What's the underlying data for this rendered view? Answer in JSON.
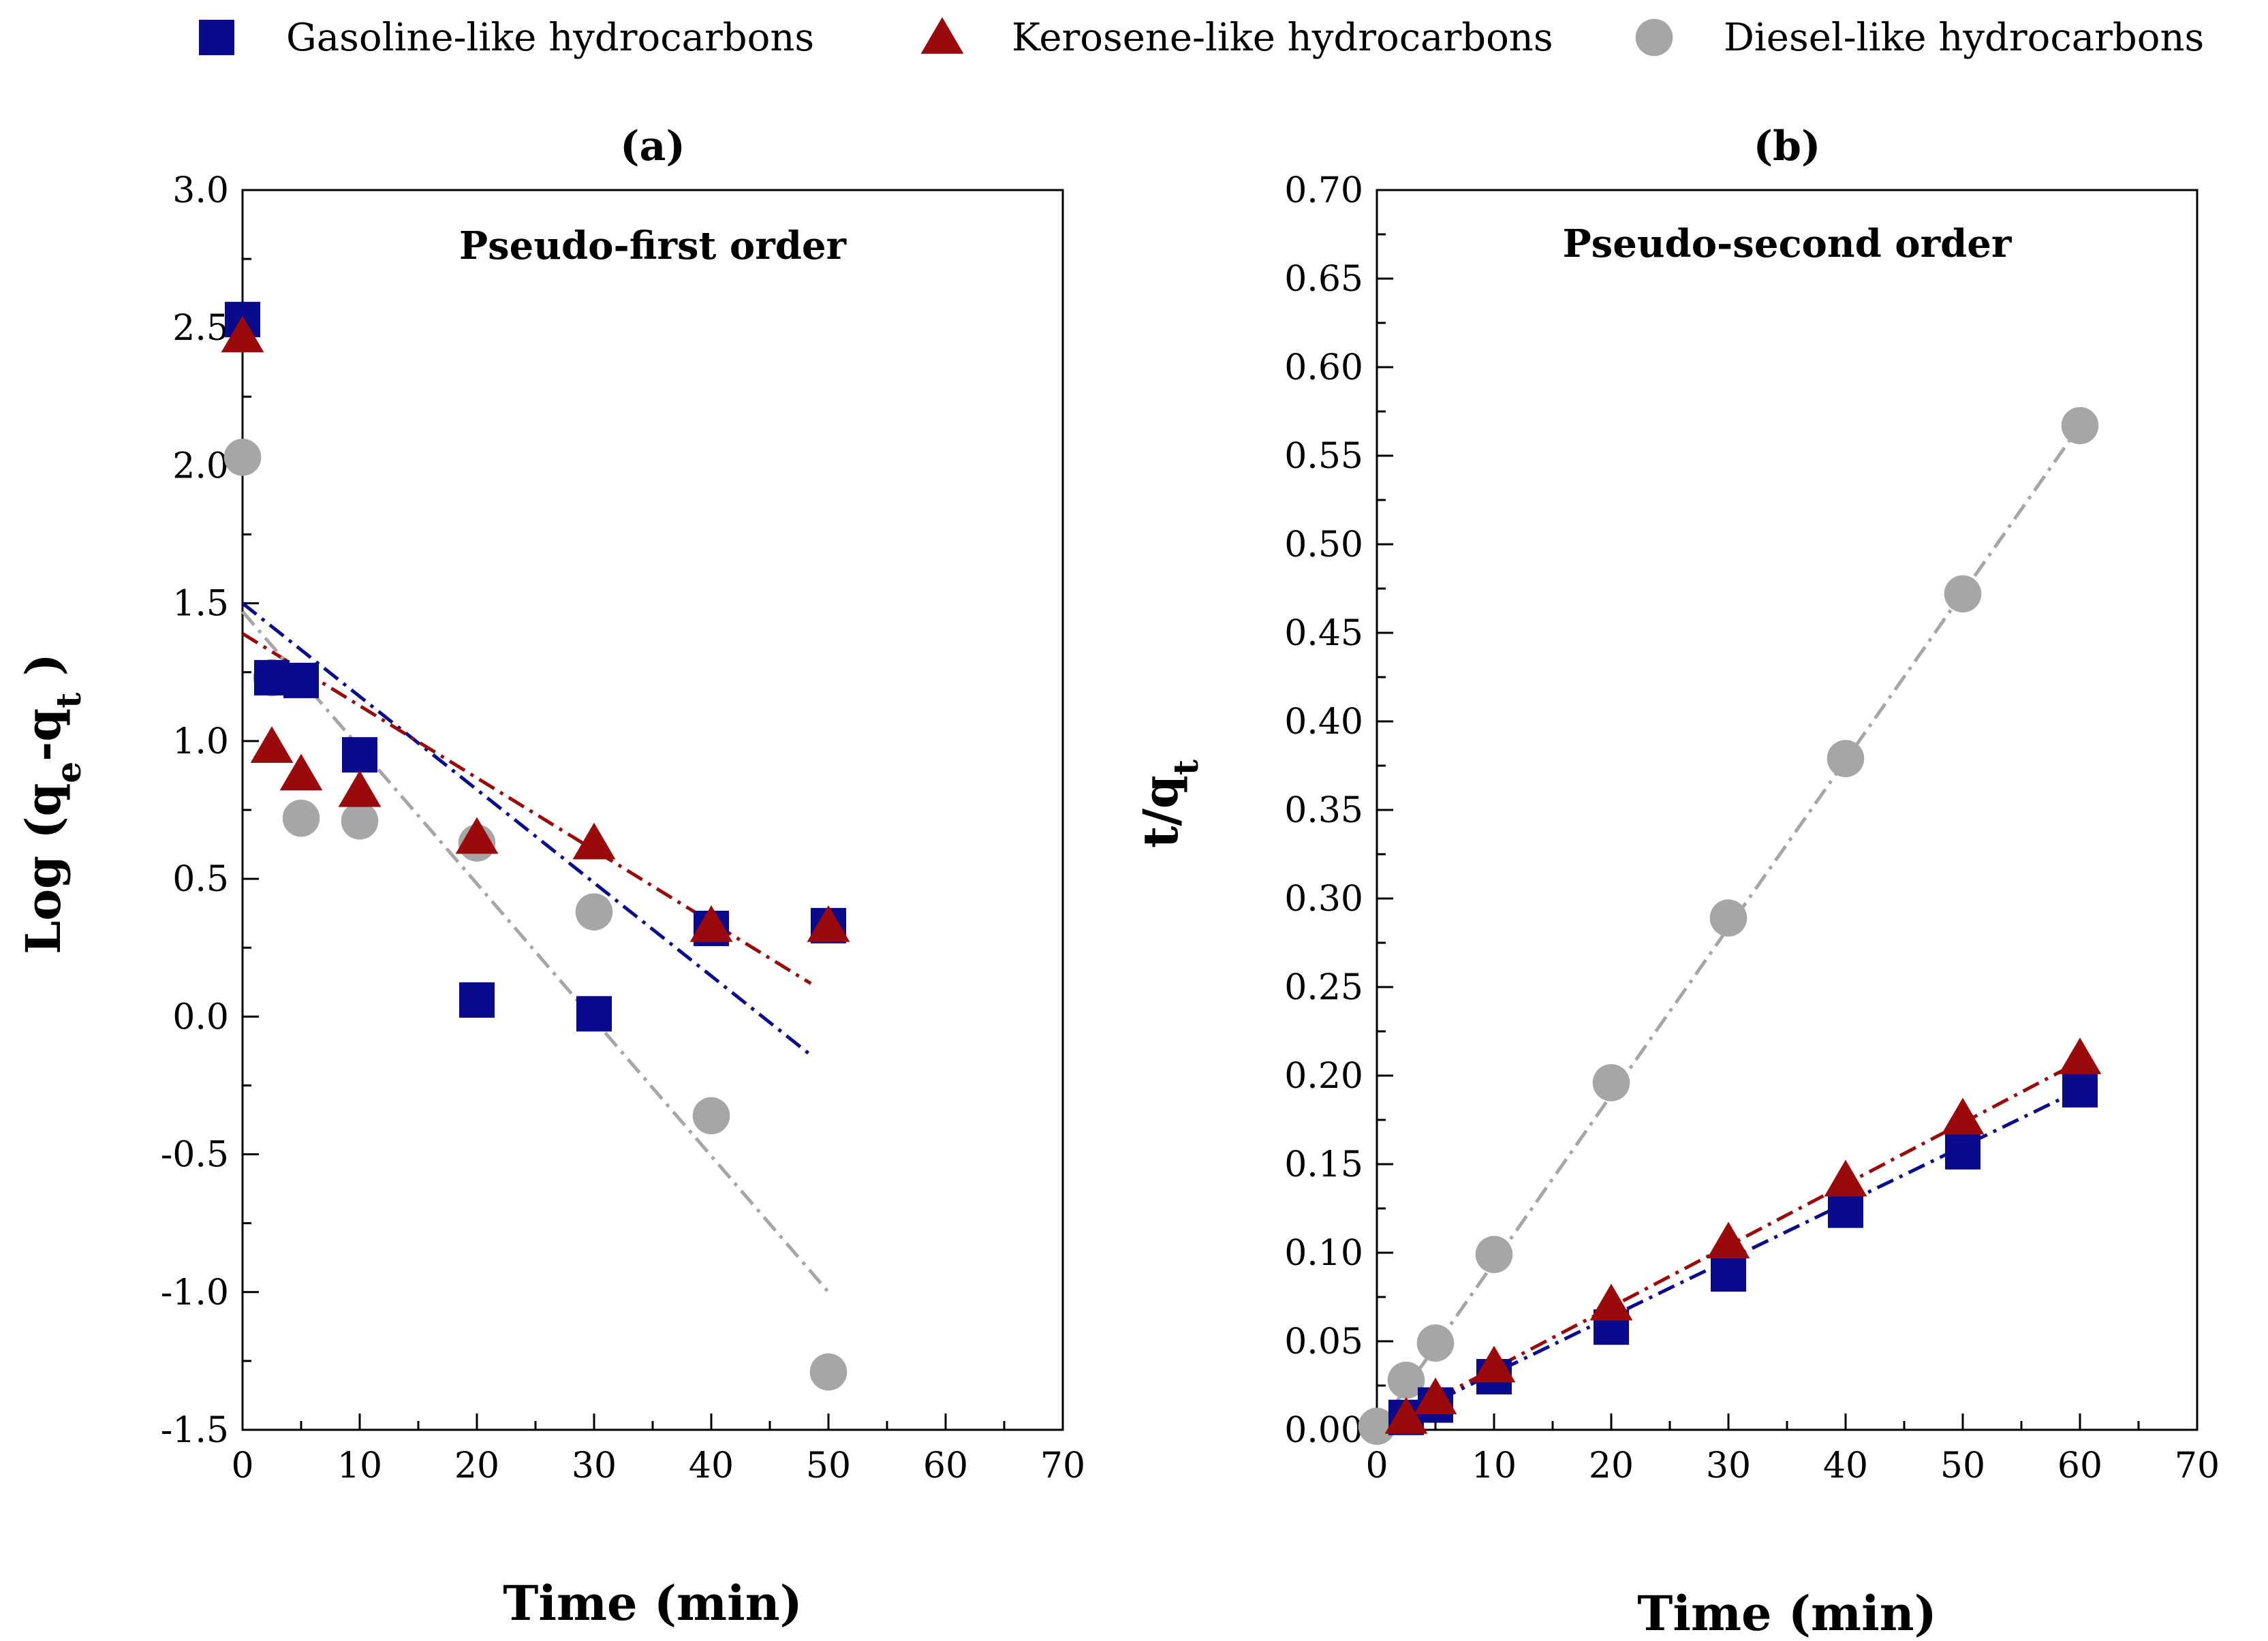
{
  "legend": [
    {
      "name": "Gasoline-like hydrocarbons",
      "color": "#0a0a8c",
      "marker": "square"
    },
    {
      "name": "Kerosene-like hydrocarbons",
      "color": "#9b0a0a",
      "marker": "triangle"
    },
    {
      "name": "Diesel-like hydrocarbons",
      "color": "#a6a6a6",
      "marker": "circle"
    }
  ],
  "colors": {
    "gasoline": "#0a0a8c",
    "kerosene": "#9b0a0a",
    "diesel": "#a6a6a6"
  },
  "chart_data": [
    {
      "type": "scatter",
      "panel_label": "(a)",
      "subtitle": "Pseudo-first order",
      "xlabel": "Time (min)",
      "ylabel_main": "Log (q",
      "ylabel_sub1": "e",
      "ylabel_mid": "-q",
      "ylabel_sub2": "t",
      "ylabel_end": " )",
      "xlim": [
        0,
        70
      ],
      "ylim": [
        -1.5,
        3.0
      ],
      "xticks": [
        0,
        10,
        20,
        30,
        40,
        50,
        60,
        70
      ],
      "yticks": [
        -1.5,
        -1.0,
        -0.5,
        0.0,
        0.5,
        1.0,
        1.5,
        2.0,
        2.5,
        3.0
      ],
      "xtick_labels": [
        "0",
        "10",
        "20",
        "30",
        "40",
        "50",
        "60",
        "70"
      ],
      "ytick_labels": [
        "-1.5",
        "-1.0",
        "-0.5",
        "0.0",
        "0.5",
        "1.0",
        "1.5",
        "2.0",
        "2.5",
        "3.0"
      ],
      "series": [
        {
          "name": "Gasoline-like hydrocarbons",
          "marker": "square",
          "color": "#0a0a8c",
          "x": [
            0,
            2.5,
            5,
            10,
            20,
            30,
            40,
            50
          ],
          "y": [
            2.53,
            1.23,
            1.22,
            0.95,
            0.06,
            0.01,
            0.32,
            0.33
          ],
          "fit": {
            "x0": 0,
            "y0": 1.5,
            "x1": 48.5,
            "y1": -0.14
          }
        },
        {
          "name": "Kerosene-like hydrocarbons",
          "marker": "triangle",
          "color": "#9b0a0a",
          "x": [
            0,
            2.5,
            5,
            10,
            20,
            30,
            40,
            50
          ],
          "y": [
            2.47,
            0.98,
            0.88,
            0.82,
            0.65,
            0.63,
            0.33,
            0.33
          ],
          "fit": {
            "x0": 0,
            "y0": 1.39,
            "x1": 48.5,
            "y1": 0.12
          }
        },
        {
          "name": "Diesel-like hydrocarbons",
          "marker": "circle",
          "color": "#a6a6a6",
          "x": [
            0,
            2.5,
            5,
            10,
            20,
            30,
            40,
            50
          ],
          "y": [
            2.03,
            1.23,
            0.72,
            0.71,
            0.63,
            0.38,
            -0.36,
            -1.29
          ],
          "fit": {
            "x0": 0,
            "y0": 1.47,
            "x1": 50,
            "y1": -1.0
          }
        }
      ]
    },
    {
      "type": "scatter",
      "panel_label": "(b)",
      "subtitle": "Pseudo-second order",
      "xlabel": "Time (min)",
      "ylabel_main": "t/q",
      "ylabel_sub": "t",
      "xlim": [
        0,
        70
      ],
      "ylim": [
        0,
        0.7
      ],
      "xticks": [
        0,
        10,
        20,
        30,
        40,
        50,
        60,
        70
      ],
      "yticks": [
        0,
        0.05,
        0.1,
        0.15,
        0.2,
        0.25,
        0.3,
        0.35,
        0.4,
        0.45,
        0.5,
        0.55,
        0.6,
        0.65,
        0.7
      ],
      "xtick_labels": [
        "0",
        "10",
        "20",
        "30",
        "40",
        "50",
        "60",
        "70"
      ],
      "ytick_labels": [
        "0.00",
        "0.05",
        "0.10",
        "0.15",
        "0.20",
        "0.25",
        "0.30",
        "0.35",
        "0.40",
        "0.45",
        "0.50",
        "0.55",
        "0.60",
        "0.65",
        "0.70"
      ],
      "series": [
        {
          "name": "Gasoline-like hydrocarbons",
          "marker": "square",
          "color": "#0a0a8c",
          "x": [
            2.5,
            5,
            10,
            20,
            30,
            40,
            50,
            60
          ],
          "y": [
            0.007,
            0.014,
            0.03,
            0.058,
            0.088,
            0.124,
            0.157,
            0.192
          ],
          "fit": {
            "x0": 0,
            "y0": 0.0,
            "x1": 60,
            "y1": 0.192
          }
        },
        {
          "name": "Kerosene-like hydrocarbons",
          "marker": "triangle",
          "color": "#9b0a0a",
          "x": [
            2.5,
            5,
            10,
            20,
            30,
            40,
            50,
            60
          ],
          "y": [
            0.007,
            0.018,
            0.036,
            0.071,
            0.106,
            0.141,
            0.176,
            0.21
          ],
          "fit": {
            "x0": 0,
            "y0": 0.0,
            "x1": 60,
            "y1": 0.208
          }
        },
        {
          "name": "Diesel-like hydrocarbons",
          "marker": "circle",
          "color": "#a6a6a6",
          "x": [
            0,
            2.5,
            5,
            10,
            20,
            30,
            40,
            50,
            60
          ],
          "y": [
            0.002,
            0.028,
            0.049,
            0.099,
            0.196,
            0.289,
            0.379,
            0.472,
            0.567
          ],
          "fit": {
            "x0": 0,
            "y0": 0.0,
            "x1": 60,
            "y1": 0.567
          }
        }
      ]
    }
  ]
}
